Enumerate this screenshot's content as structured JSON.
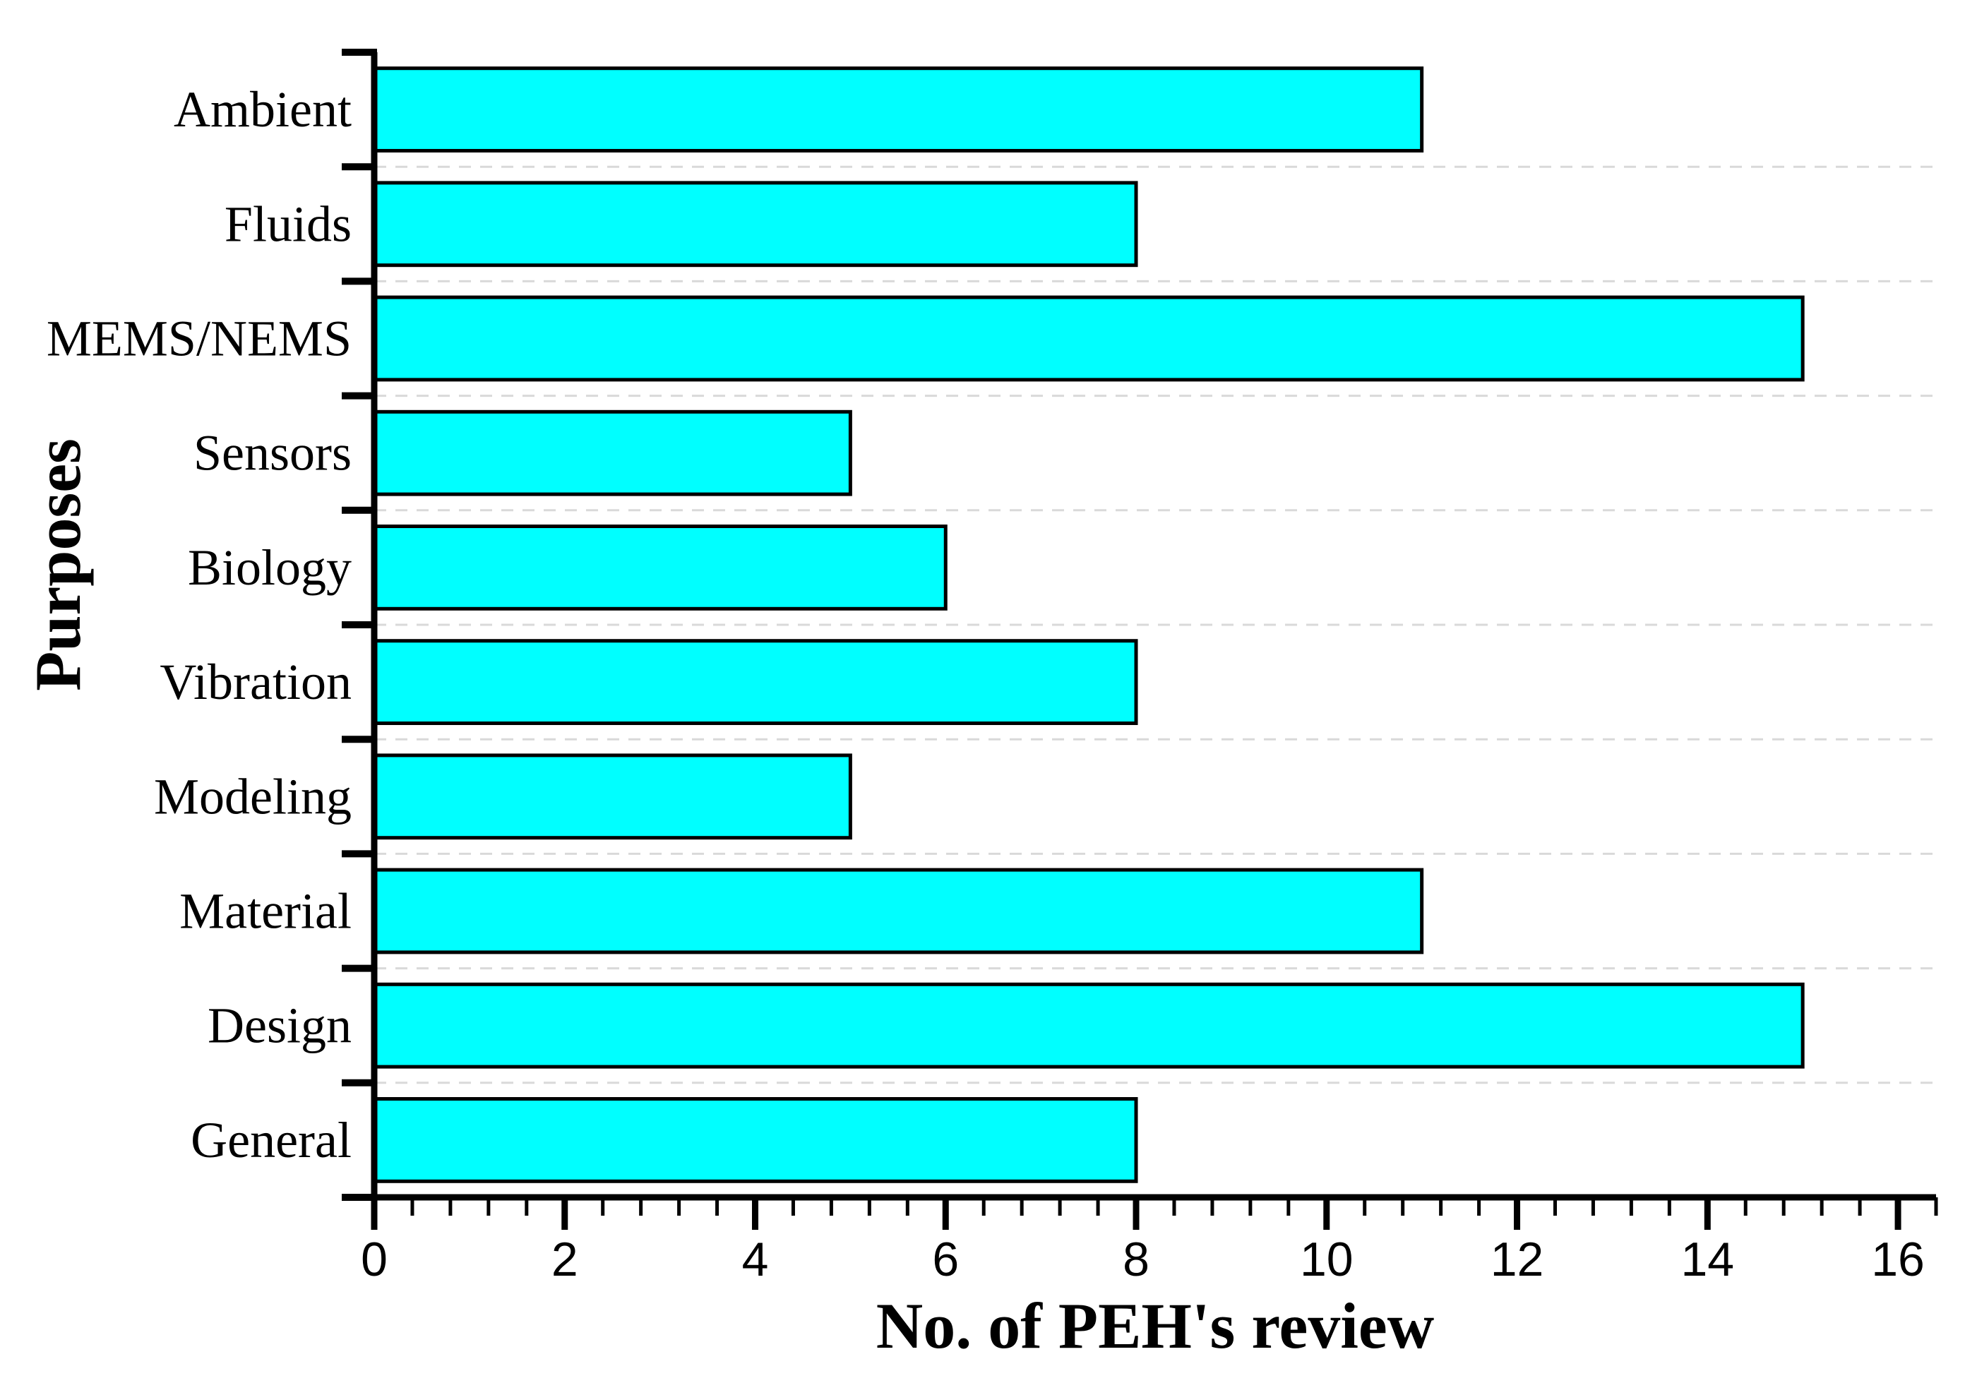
{
  "chart_data": {
    "type": "bar",
    "orientation": "horizontal",
    "title": "",
    "xlabel": "No. of PEH's review",
    "ylabel": "Purposes",
    "categories": [
      "Ambient",
      "Fluids",
      "MEMS/NEMS",
      "Sensors",
      "Biology",
      "Vibration",
      "Modeling",
      "Material",
      "Design",
      "General"
    ],
    "values": [
      11,
      8,
      15,
      5,
      6,
      8,
      5,
      11,
      15,
      8
    ],
    "xlim": [
      0,
      16.4
    ],
    "x_major_ticks": [
      0,
      2,
      4,
      6,
      8,
      10,
      12,
      14,
      16
    ],
    "x_tick_labels": [
      "0",
      "2",
      "4",
      "6",
      "8",
      "10",
      "12",
      "14",
      "16"
    ],
    "x_minor_step": 0.4,
    "grid": "dashed horizontal gridlines at category boundaries",
    "legend": "none",
    "colors": {
      "bar_fill": "#00FFFF",
      "bar_border": "#000000",
      "axis": "#000000",
      "gridline": "#D9D9D9",
      "text": "#000000",
      "background": "#FFFFFF"
    }
  }
}
